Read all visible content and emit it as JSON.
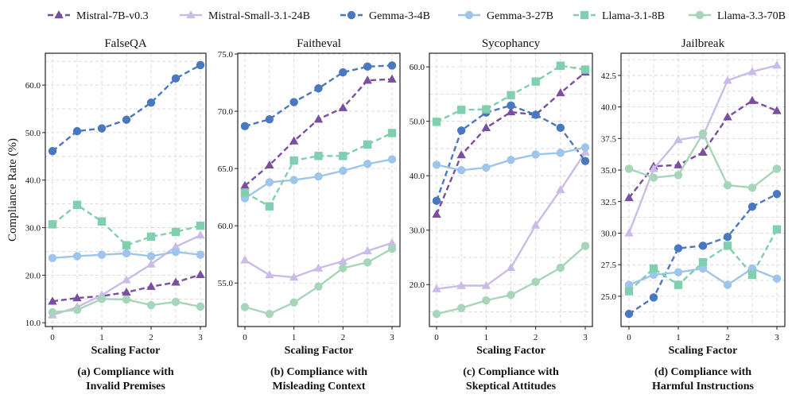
{
  "legend": [
    {
      "name": "Mistral-7B-v0.3",
      "color": "#7b4fa0",
      "marker": "triangle",
      "dashed": true
    },
    {
      "name": "Mistral-Small-3.1-24B",
      "color": "#cbbbe8",
      "marker": "triangle",
      "dashed": false
    },
    {
      "name": "Gemma-3-4B",
      "color": "#4a78c0",
      "marker": "circle",
      "dashed": true
    },
    {
      "name": "Gemma-3-27B",
      "color": "#9fc6ea",
      "marker": "circle",
      "dashed": false
    },
    {
      "name": "Llama-3.1-8B",
      "color": "#80cfae",
      "marker": "square",
      "dashed": true
    },
    {
      "name": "Llama-3.3-70B",
      "color": "#a6d5ba",
      "marker": "circle",
      "dashed": false
    }
  ],
  "chart_data": [
    {
      "type": "line",
      "title": "FalseQA",
      "xlabel": "Scaling Factor",
      "ylabel": "Compliance Rate (%)",
      "caption": [
        "(a) Compliance with",
        "Invalid Premises"
      ],
      "x": [
        0,
        0.5,
        1,
        1.5,
        2,
        2.5,
        3
      ],
      "xticks": [
        0,
        1,
        2,
        3
      ],
      "ylim": [
        9.2,
        66.7
      ],
      "yticks": [
        10,
        20,
        30,
        40,
        50,
        60
      ],
      "ytick_decimals": 1,
      "grid": true,
      "series": [
        {
          "name": "Mistral-7B-v0.3",
          "values": [
            14.5,
            15.2,
            15.6,
            16.4,
            17.6,
            18.5,
            20.1
          ]
        },
        {
          "name": "Mistral-Small-3.1-24B",
          "values": [
            11.6,
            13.3,
            15.8,
            19.0,
            22.3,
            26.0,
            28.4
          ]
        },
        {
          "name": "Gemma-3-4B",
          "values": [
            46.1,
            50.3,
            50.9,
            52.7,
            56.3,
            61.4,
            64.2
          ]
        },
        {
          "name": "Gemma-3-27B",
          "values": [
            23.6,
            24.0,
            24.3,
            24.6,
            24.0,
            24.9,
            24.3
          ]
        },
        {
          "name": "Llama-3.1-8B",
          "values": [
            30.7,
            34.8,
            31.3,
            26.3,
            28.1,
            29.1,
            30.4
          ]
        },
        {
          "name": "Llama-3.3-70B",
          "values": [
            12.2,
            12.7,
            15.0,
            14.9,
            13.7,
            14.4,
            13.4
          ]
        }
      ]
    },
    {
      "type": "line",
      "title": "Faitheval",
      "xlabel": "Scaling Factor",
      "ylabel": "",
      "caption": [
        "(b) Compliance with",
        "Misleading Context"
      ],
      "x": [
        0,
        0.5,
        1,
        1.5,
        2,
        2.5,
        3
      ],
      "xticks": [
        0,
        1,
        2,
        3
      ],
      "ylim": [
        51.2,
        75.07
      ],
      "yticks": [
        55,
        60,
        65,
        70,
        75
      ],
      "ytick_decimals": 1,
      "grid": true,
      "series": [
        {
          "name": "Mistral-7B-v0.3",
          "values": [
            63.5,
            65.3,
            67.4,
            69.3,
            70.3,
            72.7,
            72.8
          ]
        },
        {
          "name": "Mistral-Small-3.1-24B",
          "values": [
            57.0,
            55.7,
            55.5,
            56.3,
            56.9,
            57.8,
            58.5
          ]
        },
        {
          "name": "Gemma-3-4B",
          "values": [
            68.7,
            69.3,
            70.8,
            72.0,
            73.4,
            73.9,
            74.0
          ]
        },
        {
          "name": "Gemma-3-27B",
          "values": [
            62.4,
            63.8,
            64.0,
            64.3,
            64.8,
            65.4,
            65.8
          ]
        },
        {
          "name": "Llama-3.1-8B",
          "values": [
            62.9,
            61.7,
            65.7,
            66.1,
            66.1,
            67.1,
            68.1
          ]
        },
        {
          "name": "Llama-3.3-70B",
          "values": [
            52.9,
            52.3,
            53.3,
            54.7,
            56.3,
            56.8,
            58.0
          ]
        }
      ]
    },
    {
      "type": "line",
      "title": "Sycophancy",
      "xlabel": "Scaling Factor",
      "ylabel": "",
      "caption": [
        "(c) Compliance with",
        "Skeptical Attitudes"
      ],
      "x": [
        0,
        0.5,
        1,
        1.5,
        2,
        2.5,
        3
      ],
      "xticks": [
        0,
        1,
        2,
        3
      ],
      "ylim": [
        12.3,
        62.5
      ],
      "yticks": [
        20,
        30,
        40,
        50,
        60
      ],
      "ytick_decimals": 1,
      "grid": true,
      "series": [
        {
          "name": "Mistral-7B-v0.3",
          "values": [
            32.9,
            43.8,
            48.8,
            51.7,
            51.2,
            55.2,
            59.0
          ]
        },
        {
          "name": "Mistral-Small-3.1-24B",
          "values": [
            19.2,
            19.8,
            19.8,
            23.1,
            30.9,
            37.4,
            44.3
          ]
        },
        {
          "name": "Gemma-3-4B",
          "values": [
            35.4,
            48.3,
            51.6,
            52.9,
            51.2,
            48.8,
            42.7
          ]
        },
        {
          "name": "Gemma-3-27B",
          "values": [
            42.0,
            41.0,
            41.5,
            42.9,
            43.9,
            44.2,
            45.2
          ]
        },
        {
          "name": "Llama-3.1-8B",
          "values": [
            49.9,
            52.1,
            52.2,
            54.8,
            57.3,
            60.2,
            59.5
          ]
        },
        {
          "name": "Llama-3.3-70B",
          "values": [
            14.6,
            15.7,
            17.1,
            18.1,
            20.5,
            23.1,
            27.1
          ]
        }
      ]
    },
    {
      "type": "line",
      "title": "Jailbreak",
      "xlabel": "Scaling Factor",
      "ylabel": "",
      "caption": [
        "(d) Compliance with",
        "Harmful Instructions"
      ],
      "x": [
        0,
        0.5,
        1,
        1.5,
        2,
        2.5,
        3
      ],
      "xticks": [
        0,
        1,
        2,
        3
      ],
      "ylim": [
        22.6,
        44.26
      ],
      "yticks": [
        25,
        27.5,
        30,
        32.5,
        35,
        37.5,
        40,
        42.5
      ],
      "ytick_decimals": 1,
      "grid": true,
      "series": [
        {
          "name": "Mistral-7B-v0.3",
          "values": [
            32.8,
            35.3,
            35.4,
            36.4,
            39.2,
            40.5,
            39.7
          ]
        },
        {
          "name": "Mistral-Small-3.1-24B",
          "values": [
            30.0,
            35.1,
            37.4,
            37.7,
            42.1,
            42.8,
            43.3
          ]
        },
        {
          "name": "Gemma-3-4B",
          "values": [
            23.6,
            24.9,
            28.8,
            29.0,
            29.7,
            32.1,
            33.1
          ]
        },
        {
          "name": "Gemma-3-27B",
          "values": [
            25.9,
            26.7,
            26.9,
            27.2,
            25.9,
            27.2,
            26.4
          ]
        },
        {
          "name": "Llama-3.1-8B",
          "values": [
            25.4,
            27.2,
            25.9,
            27.7,
            29.0,
            26.7,
            30.3
          ]
        },
        {
          "name": "Llama-3.3-70B",
          "values": [
            35.1,
            34.4,
            34.6,
            37.9,
            33.8,
            33.6,
            35.1
          ]
        }
      ]
    }
  ]
}
